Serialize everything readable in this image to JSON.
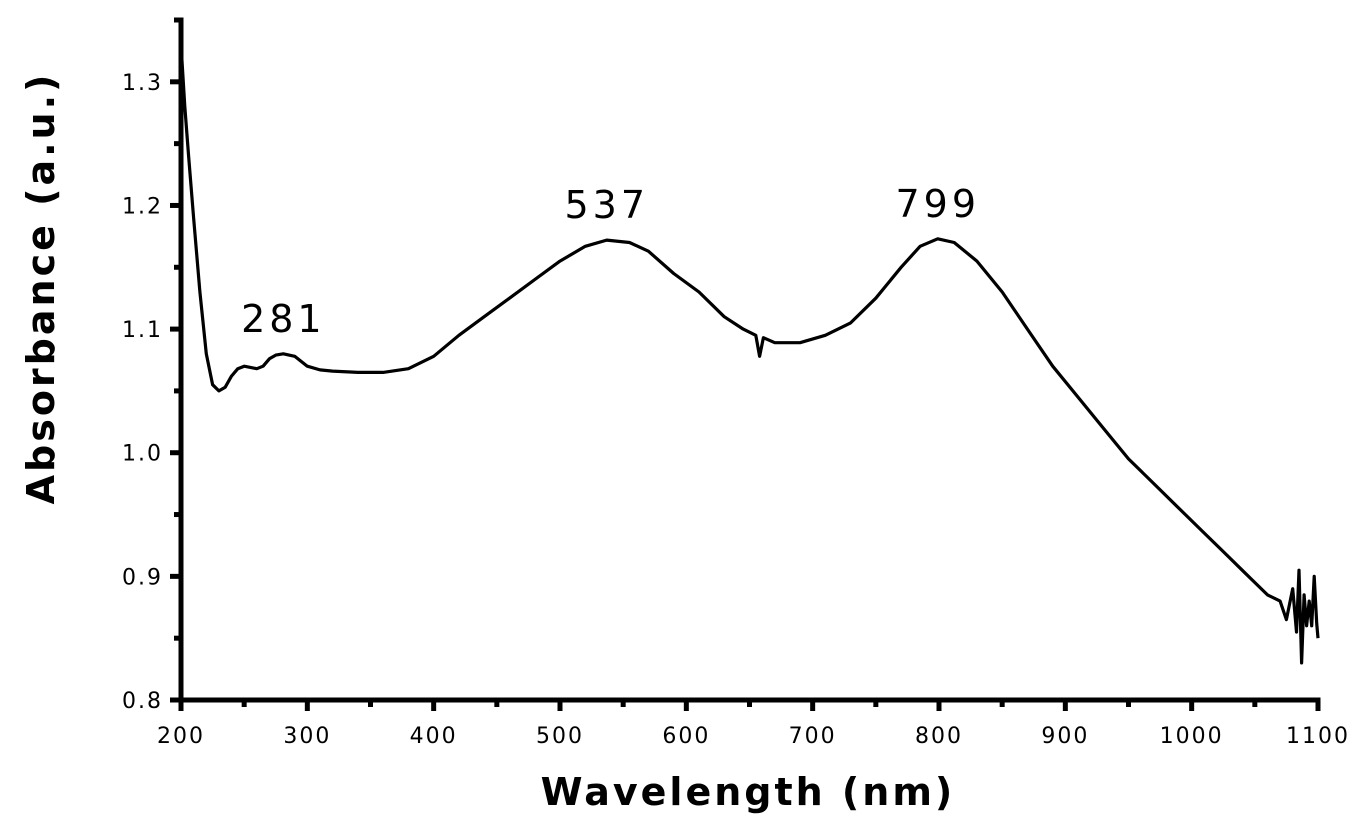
{
  "chart_data": {
    "type": "line",
    "title": "",
    "xlabel": "Wavelength (nm)",
    "ylabel": "Absorbance (a.u.)",
    "xlim": [
      200,
      1100
    ],
    "ylim": [
      0.8,
      1.35
    ],
    "x_ticks": [
      "200",
      "300",
      "400",
      "500",
      "600",
      "700",
      "800",
      "900",
      "1000",
      "1100"
    ],
    "x_tick_values": [
      200,
      300,
      400,
      500,
      600,
      700,
      800,
      900,
      1000,
      1100
    ],
    "y_ticks": [
      "0.8",
      "0.9",
      "1.0",
      "1.1",
      "1.2",
      "1.3"
    ],
    "y_tick_values": [
      0.8,
      0.9,
      1.0,
      1.1,
      1.2,
      1.3
    ],
    "grid": false,
    "legend": "none",
    "line_color": "#000000",
    "annotations": [
      {
        "text": "281",
        "x": 281,
        "y": 1.08
      },
      {
        "text": "537",
        "x": 537,
        "y": 1.172
      },
      {
        "text": "799",
        "x": 799,
        "y": 1.173
      }
    ],
    "series": [
      {
        "values": [
          {
            "x": 200,
            "y": 1.33
          },
          {
            "x": 203,
            "y": 1.28
          },
          {
            "x": 206,
            "y": 1.24
          },
          {
            "x": 210,
            "y": 1.19
          },
          {
            "x": 215,
            "y": 1.13
          },
          {
            "x": 220,
            "y": 1.08
          },
          {
            "x": 225,
            "y": 1.055
          },
          {
            "x": 230,
            "y": 1.05
          },
          {
            "x": 235,
            "y": 1.053
          },
          {
            "x": 240,
            "y": 1.062
          },
          {
            "x": 245,
            "y": 1.068
          },
          {
            "x": 250,
            "y": 1.07
          },
          {
            "x": 255,
            "y": 1.069
          },
          {
            "x": 260,
            "y": 1.068
          },
          {
            "x": 265,
            "y": 1.07
          },
          {
            "x": 270,
            "y": 1.076
          },
          {
            "x": 275,
            "y": 1.079
          },
          {
            "x": 281,
            "y": 1.08
          },
          {
            "x": 290,
            "y": 1.078
          },
          {
            "x": 300,
            "y": 1.07
          },
          {
            "x": 310,
            "y": 1.067
          },
          {
            "x": 320,
            "y": 1.066
          },
          {
            "x": 340,
            "y": 1.065
          },
          {
            "x": 360,
            "y": 1.065
          },
          {
            "x": 380,
            "y": 1.068
          },
          {
            "x": 400,
            "y": 1.078
          },
          {
            "x": 420,
            "y": 1.095
          },
          {
            "x": 440,
            "y": 1.11
          },
          {
            "x": 460,
            "y": 1.125
          },
          {
            "x": 480,
            "y": 1.14
          },
          {
            "x": 500,
            "y": 1.155
          },
          {
            "x": 520,
            "y": 1.167
          },
          {
            "x": 537,
            "y": 1.172
          },
          {
            "x": 555,
            "y": 1.17
          },
          {
            "x": 570,
            "y": 1.163
          },
          {
            "x": 590,
            "y": 1.145
          },
          {
            "x": 610,
            "y": 1.13
          },
          {
            "x": 630,
            "y": 1.11
          },
          {
            "x": 645,
            "y": 1.1
          },
          {
            "x": 655,
            "y": 1.095
          },
          {
            "x": 658,
            "y": 1.078
          },
          {
            "x": 661,
            "y": 1.093
          },
          {
            "x": 670,
            "y": 1.089
          },
          {
            "x": 690,
            "y": 1.089
          },
          {
            "x": 710,
            "y": 1.095
          },
          {
            "x": 730,
            "y": 1.105
          },
          {
            "x": 750,
            "y": 1.125
          },
          {
            "x": 770,
            "y": 1.15
          },
          {
            "x": 785,
            "y": 1.167
          },
          {
            "x": 799,
            "y": 1.173
          },
          {
            "x": 812,
            "y": 1.17
          },
          {
            "x": 830,
            "y": 1.155
          },
          {
            "x": 850,
            "y": 1.13
          },
          {
            "x": 870,
            "y": 1.1
          },
          {
            "x": 890,
            "y": 1.07
          },
          {
            "x": 910,
            "y": 1.045
          },
          {
            "x": 930,
            "y": 1.02
          },
          {
            "x": 950,
            "y": 0.995
          },
          {
            "x": 970,
            "y": 0.975
          },
          {
            "x": 990,
            "y": 0.955
          },
          {
            "x": 1010,
            "y": 0.935
          },
          {
            "x": 1025,
            "y": 0.92
          },
          {
            "x": 1040,
            "y": 0.905
          },
          {
            "x": 1050,
            "y": 0.895
          },
          {
            "x": 1060,
            "y": 0.885
          },
          {
            "x": 1070,
            "y": 0.88
          },
          {
            "x": 1075,
            "y": 0.865
          },
          {
            "x": 1080,
            "y": 0.89
          },
          {
            "x": 1083,
            "y": 0.855
          },
          {
            "x": 1085,
            "y": 0.905
          },
          {
            "x": 1087,
            "y": 0.83
          },
          {
            "x": 1089,
            "y": 0.885
          },
          {
            "x": 1091,
            "y": 0.86
          },
          {
            "x": 1093,
            "y": 0.88
          },
          {
            "x": 1095,
            "y": 0.86
          },
          {
            "x": 1097,
            "y": 0.9
          },
          {
            "x": 1099,
            "y": 0.862
          },
          {
            "x": 1100,
            "y": 0.85
          }
        ]
      }
    ]
  }
}
